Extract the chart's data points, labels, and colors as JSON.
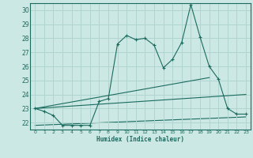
{
  "xlabel": "Humidex (Indice chaleur)",
  "background_color": "#cce8e5",
  "grid_color": "#b0d4d0",
  "line_color": "#1a6b5e",
  "xlim": [
    -0.5,
    23.5
  ],
  "ylim": [
    21.5,
    30.5
  ],
  "xticks": [
    0,
    1,
    2,
    3,
    4,
    5,
    6,
    7,
    8,
    9,
    10,
    11,
    12,
    13,
    14,
    15,
    16,
    17,
    18,
    19,
    20,
    21,
    22,
    23
  ],
  "yticks": [
    22,
    23,
    24,
    25,
    26,
    27,
    28,
    29,
    30
  ],
  "series1": [
    23.0,
    22.8,
    22.5,
    21.8,
    21.8,
    21.8,
    21.8,
    23.5,
    23.7,
    27.6,
    28.2,
    27.9,
    28.0,
    27.5,
    25.9,
    26.5,
    27.7,
    30.4,
    28.1,
    26.0,
    25.1,
    23.0,
    22.6,
    22.6
  ],
  "series2_x": [
    0,
    19
  ],
  "series2_y": [
    23.0,
    25.2
  ],
  "series3_x": [
    0,
    23
  ],
  "series3_y": [
    23.0,
    24.0
  ],
  "series4_x": [
    0,
    23
  ],
  "series4_y": [
    21.8,
    22.4
  ]
}
